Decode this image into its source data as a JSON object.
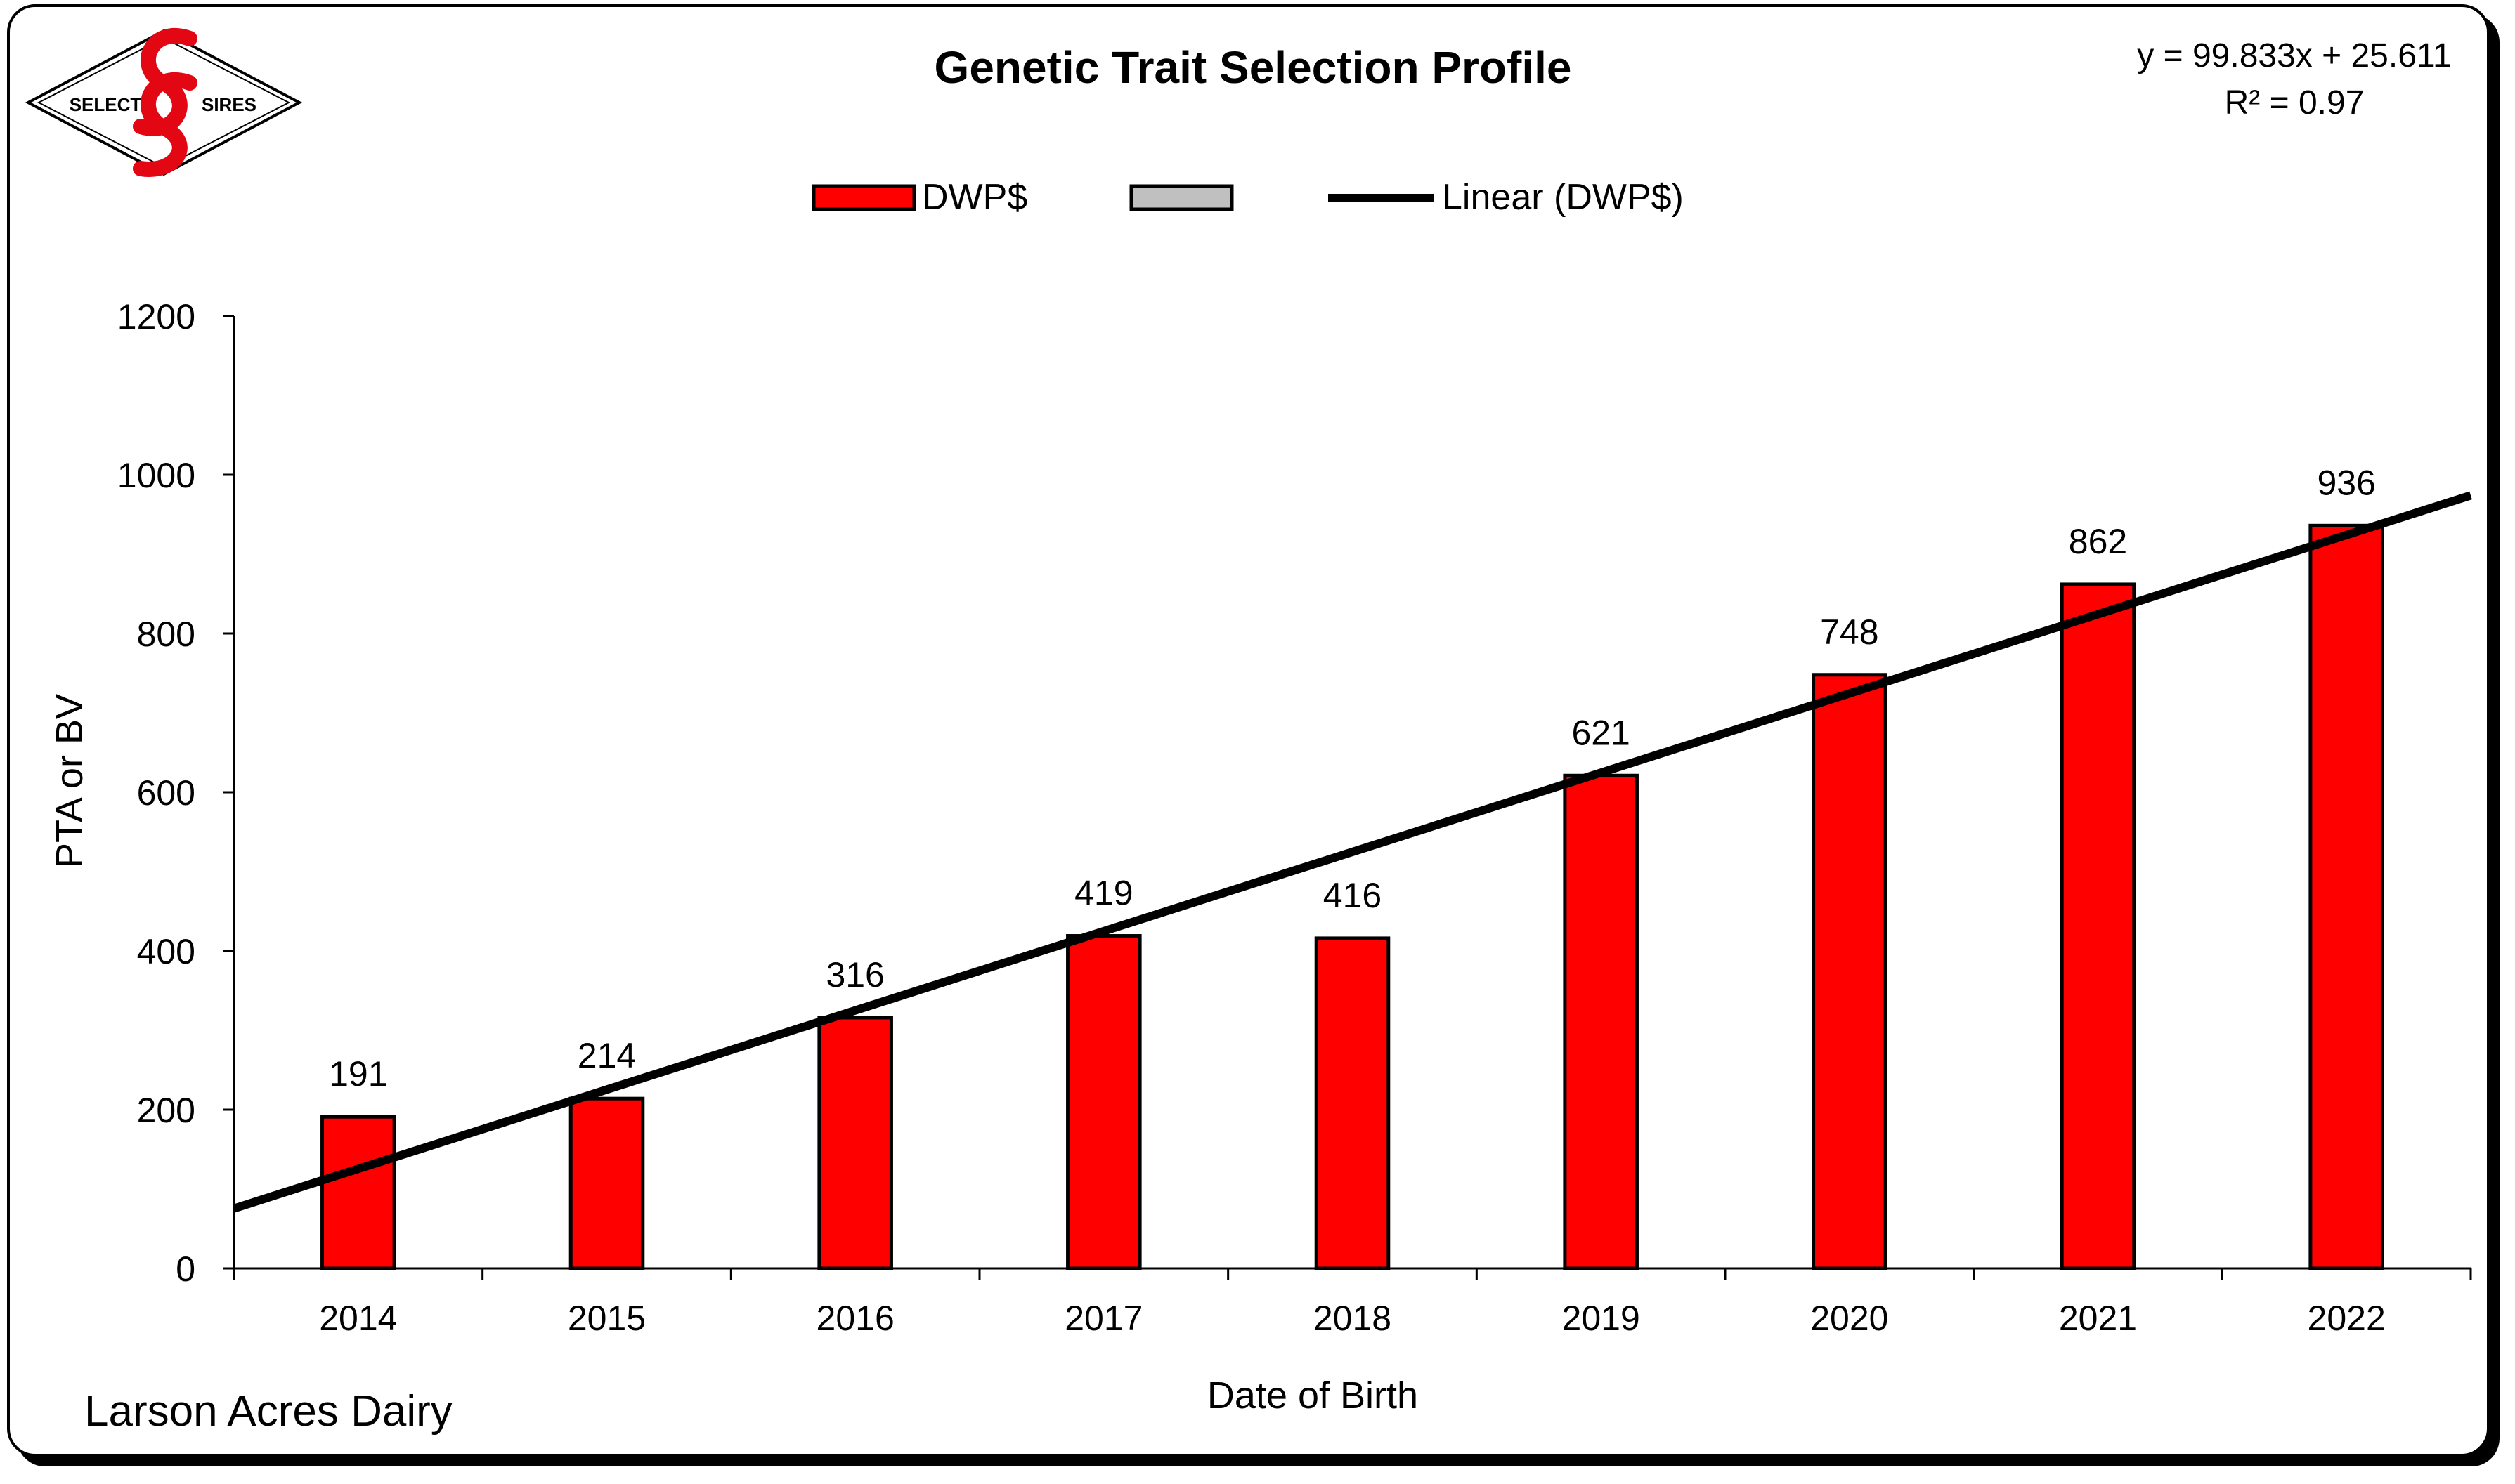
{
  "logo": {
    "left_text": "SELECT",
    "right_text": "SIRES"
  },
  "footer": {
    "farm_name": "Larson Acres Dairy"
  },
  "chart_data": {
    "type": "bar",
    "title": "Genetic Trait Selection Profile",
    "xlabel": "Date of Birth",
    "ylabel": "PTA or BV",
    "categories": [
      "2014",
      "2015",
      "2016",
      "2017",
      "2018",
      "2019",
      "2020",
      "2021",
      "2022"
    ],
    "series": [
      {
        "name": "DWP$",
        "values": [
          191,
          214,
          316,
          419,
          416,
          621,
          748,
          862,
          936
        ],
        "color": "#ff0000"
      }
    ],
    "legend": [
      "DWP$",
      "",
      "Linear (DWP$)"
    ],
    "legend_position": "top",
    "ylim": [
      0,
      1200
    ],
    "yticks": [
      0,
      200,
      400,
      600,
      800,
      1000,
      1200
    ],
    "grid": false,
    "trendline": {
      "equation": "y = 99.833x + 25.611",
      "r_squared": "R² = 0.97",
      "slope": 99.833,
      "intercept": 25.611
    },
    "colors": {
      "bar": "#ff0000",
      "bar_outline": "#000000",
      "trendline": "#000000",
      "legend_unnamed": "#c0c0c0"
    }
  }
}
